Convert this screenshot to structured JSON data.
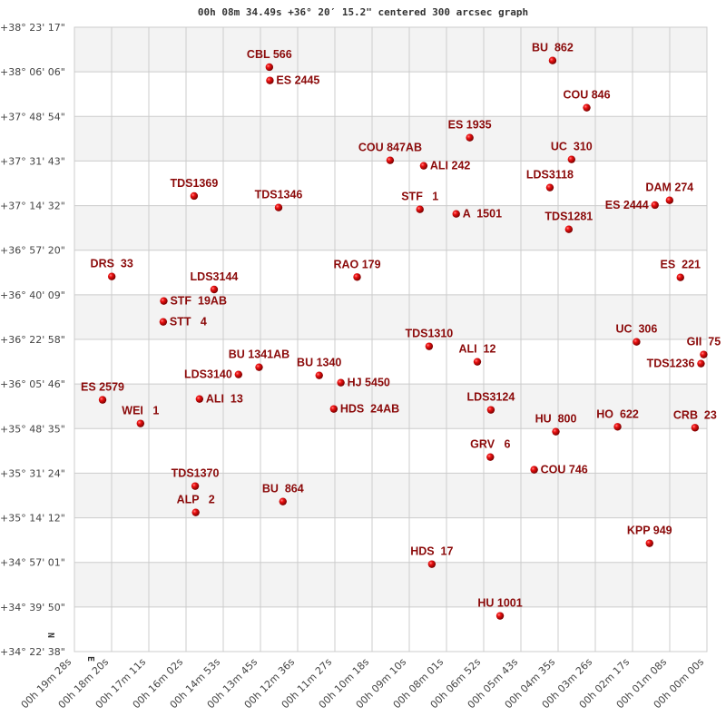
{
  "chart_data": {
    "type": "scatter",
    "title": "00h 08m 34.49s +36° 20′ 15.2\" centered 300 arcsec graph",
    "x_ticks": [
      "00h 19m 28s",
      "00h 18m 20s",
      "00h 17m 11s",
      "00h 16m 02s",
      "00h 14m 53s",
      "00h 13m 45s",
      "00h 12m 36s",
      "00h 11m 27s",
      "00h 10m 18s",
      "00h 09m 10s",
      "00h 08m 01s",
      "00h 06m 52s",
      "00h 05m 43s",
      "00h 04m 35s",
      "00h 03m 26s",
      "00h 02m 17s",
      "00h 01m 08s",
      "00h 00m 00s"
    ],
    "y_ticks": [
      "+38° 23' 17\"",
      "+38° 06' 06\"",
      "+37° 48' 54\"",
      "+37° 31' 43\"",
      "+37° 14' 32\"",
      "+36° 57' 20\"",
      "+36° 40' 09\"",
      "+36° 22' 58\"",
      "+36° 05' 46\"",
      "+35° 48' 35\"",
      "+35° 31' 24\"",
      "+35° 14' 12\"",
      "+34° 57' 01\"",
      "+34° 39' 50\"",
      "+34° 22' 38\""
    ],
    "xlim": [
      "00h 19m 28s",
      "00h 00m 00s"
    ],
    "ylim": [
      "+34° 22' 38\"",
      "+38° 23' 17\""
    ],
    "grid": true,
    "banded_rows": true,
    "compass": {
      "north": "N",
      "east": "E"
    },
    "colors": {
      "label": "#8b0a0a",
      "point": "#e00000",
      "band": "#f3f3f3",
      "grid": "#cccccc"
    },
    "points": [
      {
        "name": "CBL 566",
        "ra": "00h 13m 28s",
        "dec": "+38° 07' 54\""
      },
      {
        "name": "ES 2445",
        "ra": "00h 13m 27s",
        "dec": "+38° 02' 45\""
      },
      {
        "name": "TDS1369",
        "ra": "00h 15m 47s",
        "dec": "+37° 18' 14\""
      },
      {
        "name": "TDS1346",
        "ra": "00h 13m 11s",
        "dec": "+37° 13' 47\""
      },
      {
        "name": "BU  862",
        "ra": "00h 04m 45s",
        "dec": "+38° 10' 27\""
      },
      {
        "name": "COU 846",
        "ra": "00h 03m 42s",
        "dec": "+37° 52' 16\""
      },
      {
        "name": "ES 1935",
        "ra": "00h 07m 18s",
        "dec": "+37° 40' 43\""
      },
      {
        "name": "COU 847AB",
        "ra": "00h 09m 45s",
        "dec": "+37° 31' 59\""
      },
      {
        "name": "ALI 242",
        "ra": "00h 08m 43s",
        "dec": "+37° 29' 53\""
      },
      {
        "name": "UC  310",
        "ra": "00h 04m 10s",
        "dec": "+37° 32' 20\""
      },
      {
        "name": "LDS3118",
        "ra": "00h 04m 50s",
        "dec": "+37° 21' 29\""
      },
      {
        "name": "STF   1",
        "ra": "00h 08m 50s",
        "dec": "+37° 13' 05\""
      },
      {
        "name": "A  1501",
        "ra": "00h 07m 43s",
        "dec": "+37° 11' 20\""
      },
      {
        "name": "TDS1281",
        "ra": "00h 04m 15s",
        "dec": "+37° 05' 24\""
      },
      {
        "name": "ES 2444",
        "ra": "00h 01m 36s",
        "dec": "+37° 14' 44\""
      },
      {
        "name": "DAM 274",
        "ra": "00h 01m 09s",
        "dec": "+37° 16' 35\""
      },
      {
        "name": "DRS  33",
        "ra": "00h 18m 19s",
        "dec": "+36° 47' 12\""
      },
      {
        "name": "LDS3144",
        "ra": "00h 15m 10s",
        "dec": "+36° 42' 12\""
      },
      {
        "name": "STF  19AB",
        "ra": "00h 16m 43s",
        "dec": "+36° 37' 46\""
      },
      {
        "name": "STT   4",
        "ra": "00h 16m 44s",
        "dec": "+36° 29' 43\""
      },
      {
        "name": "RAO 179",
        "ra": "00h 10m 46s",
        "dec": "+36° 47' 00\""
      },
      {
        "name": "BU 1341AB",
        "ra": "00h 13m 47s",
        "dec": "+36° 12' 14\""
      },
      {
        "name": "LDS3140",
        "ra": "00h 14m 25s",
        "dec": "+36° 09' 26\""
      },
      {
        "name": "BU 1340",
        "ra": "00h 11m 56s",
        "dec": "+36° 09' 05\""
      },
      {
        "name": "HJ 5450",
        "ra": "00h 11m 16s",
        "dec": "+36° 06' 17\""
      },
      {
        "name": "HDS  24AB",
        "ra": "00h 11m 29s",
        "dec": "+35° 56' 09\""
      },
      {
        "name": "ES 2579",
        "ra": "00h 18m 36s",
        "dec": "+35° 59' 39\""
      },
      {
        "name": "ALI  13",
        "ra": "00h 15m 37s",
        "dec": "+35° 59' 59\""
      },
      {
        "name": "WEI   1",
        "ra": "00h 17m 26s",
        "dec": "+35° 50' 33\""
      },
      {
        "name": "ES  221",
        "ra": "00h 00m 49s",
        "dec": "+36° 46' 51\""
      },
      {
        "name": "TDS1310",
        "ra": "00h 08m 33s",
        "dec": "+36° 20' 17\""
      },
      {
        "name": "ALI  12",
        "ra": "00h 07m 04s",
        "dec": "+36° 14' 20\""
      },
      {
        "name": "UC  306",
        "ra": "00h 02m 10s",
        "dec": "+36° 22' 01\""
      },
      {
        "name": "GII  75",
        "ra": "00h 00m 06s",
        "dec": "+36° 17' 08\""
      },
      {
        "name": "TDS1236",
        "ra": "00h 00m 11s",
        "dec": "+36° 13' 38\""
      },
      {
        "name": "LDS3124",
        "ra": "00h 06m 39s",
        "dec": "+35° 55' 48\""
      },
      {
        "name": "HU  800",
        "ra": "00h 04m 39s",
        "dec": "+35° 47' 24\""
      },
      {
        "name": "HO  622",
        "ra": "00h 02m 45s",
        "dec": "+35° 49' 17\""
      },
      {
        "name": "CRB  23",
        "ra": "00h 00m 22s",
        "dec": "+35° 48' 56\""
      },
      {
        "name": "GRV   6",
        "ra": "00h 06m 40s",
        "dec": "+35° 37' 36\""
      },
      {
        "name": "COU 746",
        "ra": "00h 05m 19s",
        "dec": "+35° 32' 43\""
      },
      {
        "name": "TDS1370",
        "ra": "00h 15m 45s",
        "dec": "+35° 26' 25\""
      },
      {
        "name": "ALP   2",
        "ra": "00h 15m 44s",
        "dec": "+35° 16' 16\""
      },
      {
        "name": "BU  864",
        "ra": "00h 13m 03s",
        "dec": "+35° 20' 28\""
      },
      {
        "name": "HDS  17",
        "ra": "00h 08m 28s",
        "dec": "+34° 56' 20\""
      },
      {
        "name": "HU 1001",
        "ra": "00h 06m 22s",
        "dec": "+34° 36' 24\""
      },
      {
        "name": "KPP 949",
        "ra": "00h 01m 46s",
        "dec": "+35° 04' 23\""
      }
    ]
  }
}
